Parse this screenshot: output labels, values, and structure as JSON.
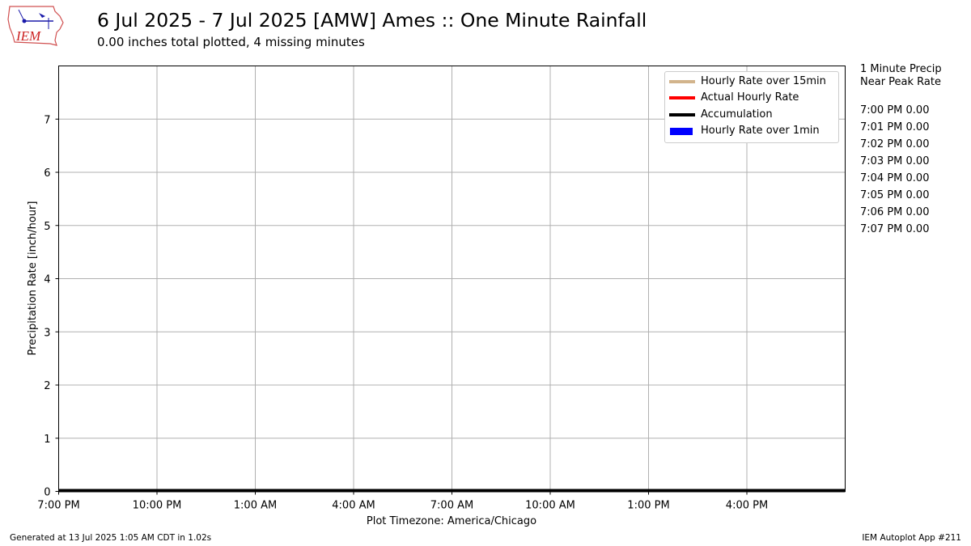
{
  "header": {
    "logo_text": "IEM",
    "title": "6 Jul 2025 - 7 Jul 2025 [AMW] Ames :: One Minute Rainfall",
    "subtitle": "0.00 inches total plotted, 4 missing minutes"
  },
  "side_panel": {
    "header_line1": "1 Minute Precip",
    "header_line2": "Near Peak Rate",
    "entries": [
      {
        "time": "7:00 PM",
        "value": "0.00"
      },
      {
        "time": "7:01 PM",
        "value": "0.00"
      },
      {
        "time": "7:02 PM",
        "value": "0.00"
      },
      {
        "time": "7:03 PM",
        "value": "0.00"
      },
      {
        "time": "7:04 PM",
        "value": "0.00"
      },
      {
        "time": "7:05 PM",
        "value": "0.00"
      },
      {
        "time": "7:06 PM",
        "value": "0.00"
      },
      {
        "time": "7:07 PM",
        "value": "0.00"
      }
    ]
  },
  "footer": {
    "left": "Generated at 13 Jul 2025 1:05 AM CDT in 1.02s",
    "right": "IEM Autoplot App #211"
  },
  "chart_data": {
    "type": "line",
    "xlabel": "Plot Timezone: America/Chicago",
    "ylabel": "Precipitation Rate [inch/hour]",
    "x_ticks": [
      "7:00 PM",
      "10:00 PM",
      "1:00 AM",
      "4:00 AM",
      "7:00 AM",
      "10:00 AM",
      "1:00 PM",
      "4:00 PM"
    ],
    "x_range_hours": [
      0,
      24
    ],
    "x_tick_hours": [
      0,
      3,
      6,
      9,
      12,
      15,
      18,
      21
    ],
    "y_ticks": [
      0,
      1,
      2,
      3,
      4,
      5,
      6,
      7
    ],
    "ylim": [
      0,
      8
    ],
    "grid": true,
    "legend_position": "top-right",
    "series": [
      {
        "name": "Hourly Rate over 15min",
        "color": "#d2b48c",
        "style": "line",
        "x_hours": [
          0,
          24
        ],
        "values": [
          0,
          0
        ]
      },
      {
        "name": "Actual Hourly Rate",
        "color": "#ff0000",
        "style": "line",
        "x_hours": [
          0,
          24
        ],
        "values": [
          0,
          0
        ]
      },
      {
        "name": "Accumulation",
        "color": "#000000",
        "style": "line",
        "x_hours": [
          0,
          24
        ],
        "values": [
          0,
          0
        ]
      },
      {
        "name": "Hourly Rate over 1min",
        "color": "#0000ff",
        "style": "bar",
        "x_hours": [],
        "values": []
      }
    ]
  }
}
